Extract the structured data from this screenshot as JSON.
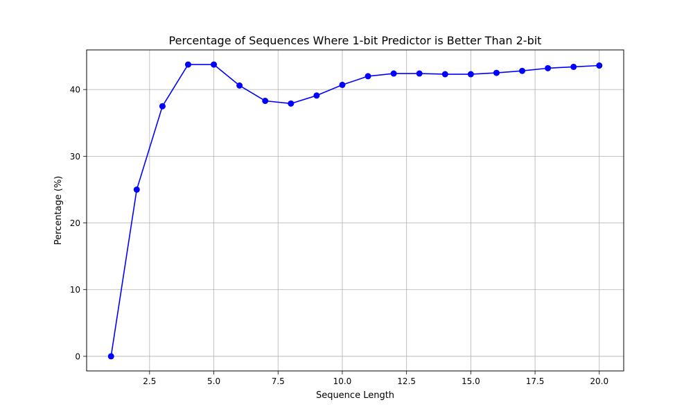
{
  "chart_data": {
    "type": "line",
    "title": "Percentage of Sequences Where 1-bit Predictor is Better Than 2-bit",
    "xlabel": "Sequence Length",
    "ylabel": "Percentage (%)",
    "xlim": [
      0.05,
      20.95
    ],
    "ylim": [
      -2.19,
      45.94
    ],
    "xticks": [
      2.5,
      5.0,
      7.5,
      10.0,
      12.5,
      15.0,
      17.5,
      20.0
    ],
    "xtick_labels": [
      "2.5",
      "5.0",
      "7.5",
      "10.0",
      "12.5",
      "15.0",
      "17.5",
      "20.0"
    ],
    "yticks": [
      0,
      10,
      20,
      30,
      40
    ],
    "ytick_labels": [
      "0",
      "10",
      "20",
      "30",
      "40"
    ],
    "grid": true,
    "marker": "circle",
    "color": "#0000ff",
    "series": [
      {
        "x": [
          1,
          2,
          3,
          4,
          5,
          6,
          7,
          8,
          9,
          10,
          11,
          12,
          13,
          14,
          15,
          16,
          17,
          18,
          19,
          20
        ],
        "values": [
          0.0,
          25.0,
          37.5,
          43.75,
          43.75,
          40.6,
          38.3,
          37.9,
          39.1,
          40.7,
          42.0,
          42.4,
          42.4,
          42.3,
          42.3,
          42.5,
          42.8,
          43.2,
          43.4,
          43.6
        ]
      }
    ]
  }
}
